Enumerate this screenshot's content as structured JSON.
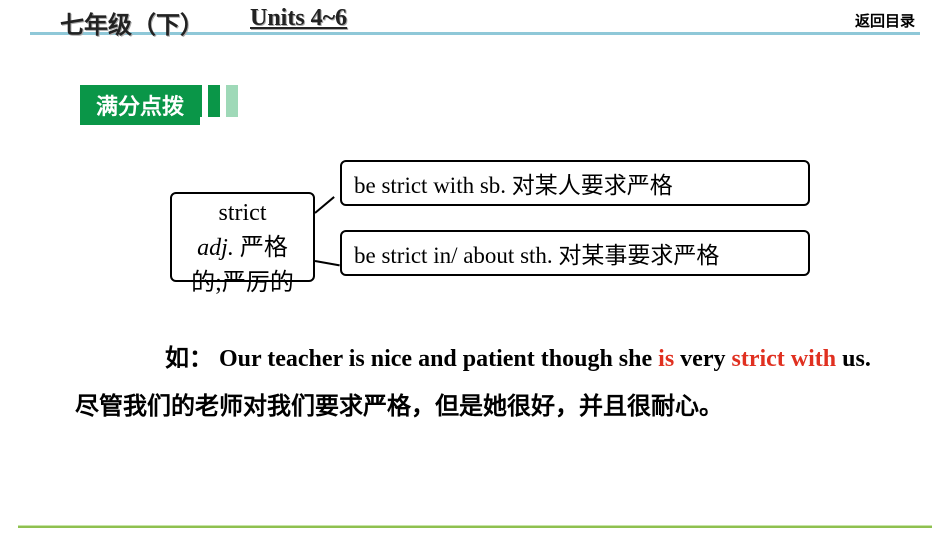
{
  "header": {
    "grade": "七年级（下）",
    "units": "Units 4~6",
    "back": "返回目录"
  },
  "tip_badge": "满分点拨",
  "diagram": {
    "root": {
      "en": "strict",
      "pos": "adj.",
      "cn1": " 严格",
      "cn2": "的;严厉的"
    },
    "branch1": "be strict with sb. 对某人要求严格",
    "branch2": "be strict in/ about sth. 对某事要求严格"
  },
  "body": {
    "lead": "如：",
    "en1": " Our teacher is nice and patient though she ",
    "red1": "is",
    "en2": " very ",
    "red2": "strict with",
    "en3": " us.",
    "cn": "  尽管我们的老师对我们要求严格，但是她很好，并且很耐心。"
  },
  "colors": {
    "badge_bg": "#0a9648",
    "header_line": "#8fc8d8",
    "red_text": "#e03020"
  }
}
